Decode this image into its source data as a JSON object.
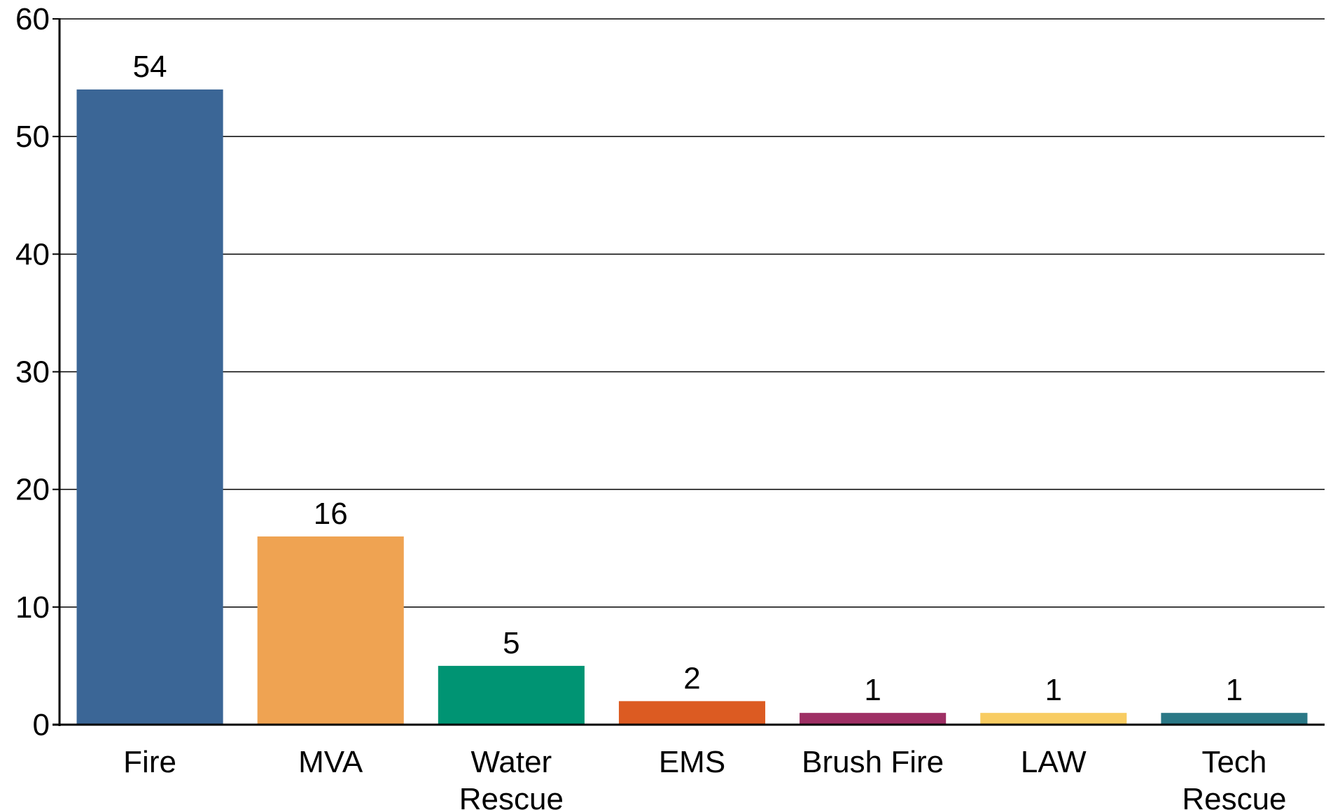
{
  "chart_data": {
    "type": "bar",
    "categories": [
      "Fire",
      "MVA",
      "Water\nRescue",
      "EMS",
      "Brush Fire",
      "LAW",
      "Tech\nRescue"
    ],
    "values": [
      54,
      16,
      5,
      2,
      1,
      1,
      1
    ],
    "colors": [
      "#3b6696",
      "#efa352",
      "#009473",
      "#dc5b22",
      "#9e2f64",
      "#f8cc62",
      "#2a7886"
    ],
    "ylim": [
      0,
      60
    ],
    "yticks": [
      0,
      10,
      20,
      30,
      40,
      50,
      60
    ],
    "grid": true
  }
}
